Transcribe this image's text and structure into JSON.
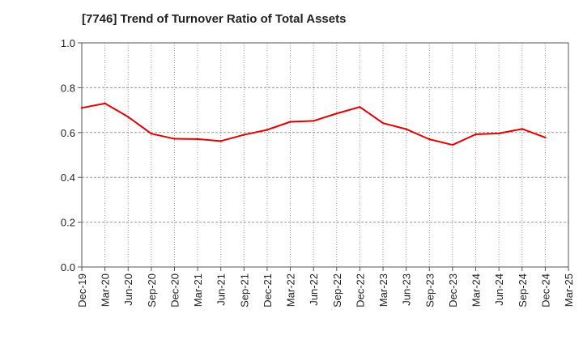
{
  "title": "[7746]  Trend of Turnover Ratio of Total Assets",
  "chart_data": {
    "type": "line",
    "title": "[7746]  Trend of Turnover Ratio of Total Assets",
    "xlabel": "",
    "ylabel": "",
    "ylim": [
      0,
      1.0
    ],
    "yticks": [
      "0.0",
      "0.2",
      "0.4",
      "0.6",
      "0.8",
      "1.0"
    ],
    "x_tick_labels": [
      "Dec-19",
      "Mar-20",
      "Jun-20",
      "Sep-20",
      "Dec-20",
      "Mar-21",
      "Jun-21",
      "Sep-21",
      "Dec-21",
      "Mar-22",
      "Jun-22",
      "Sep-22",
      "Dec-22",
      "Mar-23",
      "Jun-23",
      "Sep-23",
      "Dec-23",
      "Mar-24",
      "Jun-24",
      "Sep-24",
      "Dec-24",
      "Mar-25"
    ],
    "grid": true,
    "series": [
      {
        "color": "#e00000",
        "x": [
          "Dec-19",
          "Mar-20",
          "Jun-20",
          "Sep-20",
          "Dec-20",
          "Mar-21",
          "Jun-21",
          "Sep-21",
          "Dec-21",
          "Mar-22",
          "Jun-22",
          "Sep-22",
          "Dec-22",
          "Mar-23",
          "Jun-23",
          "Sep-23",
          "Dec-23",
          "Mar-24",
          "Jun-24",
          "Sep-24",
          "Dec-24"
        ],
        "values": [
          0.71,
          0.73,
          0.67,
          0.595,
          0.572,
          0.571,
          0.562,
          0.59,
          0.612,
          0.648,
          0.652,
          0.685,
          0.714,
          0.642,
          0.615,
          0.57,
          0.545,
          0.592,
          0.596,
          0.616,
          0.578
        ]
      }
    ]
  }
}
